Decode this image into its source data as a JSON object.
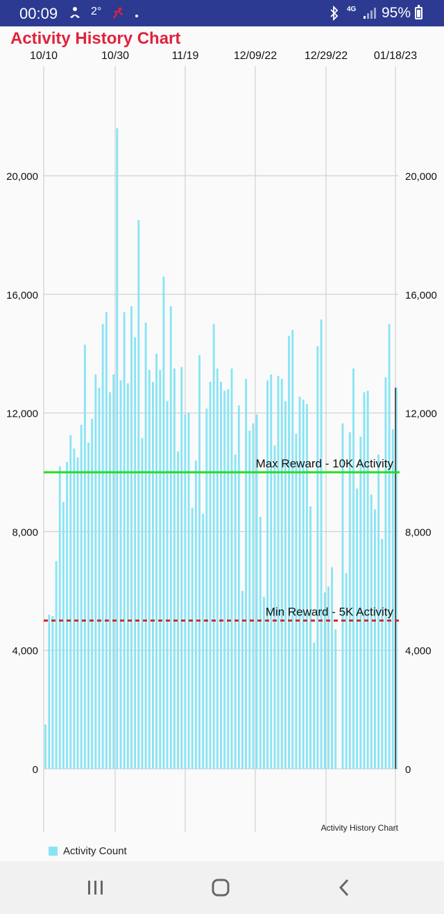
{
  "status_bar": {
    "time": "00:09",
    "temperature": "2°",
    "network": "4G",
    "battery": "95%",
    "icons": [
      "meditation-icon",
      "fitness-app-icon",
      "dot-icon",
      "bluetooth-icon",
      "signal-icon",
      "battery-icon"
    ]
  },
  "app": {
    "title": "Activity History Chart",
    "title_color": "#e0223c"
  },
  "chart_data": {
    "type": "bar",
    "title": "Activity History Chart",
    "description": "Activity History Chart",
    "x_tick_labels": [
      "10/10",
      "10/30",
      "11/19",
      "12/09/22",
      "12/29/22",
      "01/18/23"
    ],
    "y_ticks": [
      0,
      4000,
      8000,
      12000,
      16000,
      20000
    ],
    "y_tick_labels": [
      "0",
      "4,000",
      "8,000",
      "12,000",
      "16,000",
      "20,000"
    ],
    "ylim": [
      0,
      24000
    ],
    "grid": true,
    "bar_color": "#88e4f4",
    "legend_position": "bottom-left",
    "series": [
      {
        "name": "Activity Count",
        "values": [
          1500,
          5200,
          5150,
          7000,
          10200,
          9000,
          10350,
          11250,
          10800,
          10500,
          11600,
          14300,
          11000,
          11800,
          13300,
          12850,
          15000,
          15400,
          12700,
          13300,
          21600,
          13100,
          15400,
          13000,
          15600,
          14550,
          18500,
          11150,
          15050,
          13450,
          13050,
          14000,
          13450,
          16600,
          12400,
          15600,
          13500,
          10700,
          13550,
          11950,
          12000,
          8800,
          10400,
          13950,
          8600,
          12150,
          13050,
          15000,
          13500,
          13050,
          12750,
          12800,
          13500,
          10600,
          12250,
          6000,
          13150,
          11400,
          11650,
          11950,
          8500,
          5800,
          13100,
          13300,
          10900,
          13250,
          13150,
          12400,
          14600,
          14800,
          11300,
          12550,
          12450,
          12300,
          8850,
          4250,
          14250,
          15150,
          5950,
          6150,
          6800,
          4700,
          0,
          11650,
          6600,
          11350,
          13500,
          9450,
          11200,
          12700,
          12750,
          9250,
          8750,
          10600,
          7750,
          13200,
          15000,
          11450,
          12850
        ]
      }
    ],
    "reference_lines": [
      {
        "label": "Max Reward - 10K Activity",
        "value": 10000,
        "color": "#22dd22",
        "style": "solid"
      },
      {
        "label": "Min Reward - 5K Activity",
        "value": 5000,
        "color": "#d42a2a",
        "style": "dashed"
      }
    ]
  },
  "nav_bar": {
    "recents_icon": "recents-icon",
    "home_icon": "home-icon",
    "back_icon": "back-icon"
  }
}
